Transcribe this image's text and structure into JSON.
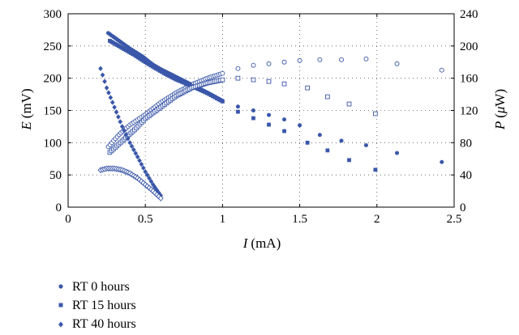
{
  "chart_data": {
    "type": "scatter",
    "title": "",
    "xlabel": {
      "symbol": "I",
      "unit": "(mA)"
    },
    "ylabel_left": {
      "symbol": "E",
      "unit": "(mV)"
    },
    "ylabel_right": {
      "symbol": "P",
      "unit_prefix": "(",
      "unit_mu": "μ",
      "unit_rest": "W)"
    },
    "xlim": [
      0,
      2.5
    ],
    "ylim_left": [
      0,
      300
    ],
    "ylim_right": [
      0,
      240
    ],
    "x_ticks": [
      "0",
      "0.5",
      "1",
      "1.5",
      "2",
      "2.5"
    ],
    "y_left_ticks": [
      "0",
      "50",
      "100",
      "150",
      "200",
      "250",
      "300"
    ],
    "y_right_ticks": [
      "0",
      "40",
      "80",
      "120",
      "160",
      "200",
      "240"
    ],
    "grid": "dotted",
    "legend_position": "below-left",
    "color": "#3a57a9",
    "series": [
      {
        "name": "RT 0 hours",
        "marker": "circle",
        "voltage_mV": [
          [
            0.26,
            270
          ],
          [
            0.33,
            258
          ],
          [
            0.4,
            246
          ],
          [
            0.48,
            234
          ],
          [
            0.55,
            221
          ],
          [
            0.6,
            214
          ],
          [
            0.7,
            202
          ],
          [
            0.8,
            190
          ],
          [
            0.9,
            178
          ],
          [
            1.0,
            165
          ],
          [
            1.1,
            156
          ],
          [
            1.2,
            150
          ],
          [
            1.3,
            143
          ],
          [
            1.4,
            136
          ],
          [
            1.5,
            127
          ],
          [
            1.63,
            112
          ],
          [
            1.77,
            103
          ],
          [
            1.93,
            96
          ],
          [
            2.13,
            84
          ],
          [
            2.42,
            70
          ]
        ],
        "power_uW": [
          [
            0.26,
            75
          ],
          [
            0.33,
            90
          ],
          [
            0.4,
            102
          ],
          [
            0.5,
            115
          ],
          [
            0.6,
            130
          ],
          [
            0.7,
            142
          ],
          [
            0.8,
            152
          ],
          [
            0.9,
            160
          ],
          [
            1.0,
            166
          ],
          [
            1.1,
            172
          ],
          [
            1.2,
            176
          ],
          [
            1.3,
            178
          ],
          [
            1.4,
            180
          ],
          [
            1.5,
            182
          ],
          [
            1.63,
            183
          ],
          [
            1.77,
            183
          ],
          [
            1.93,
            184
          ],
          [
            2.13,
            178
          ],
          [
            2.42,
            170
          ]
        ]
      },
      {
        "name": "RT 15 hours",
        "marker": "square",
        "voltage_mV": [
          [
            0.27,
            258
          ],
          [
            0.35,
            247
          ],
          [
            0.43,
            236
          ],
          [
            0.5,
            225
          ],
          [
            0.57,
            215
          ],
          [
            0.62,
            208
          ],
          [
            0.7,
            198
          ],
          [
            0.8,
            188
          ],
          [
            0.9,
            177
          ],
          [
            1.0,
            164
          ],
          [
            1.1,
            148
          ],
          [
            1.2,
            138
          ],
          [
            1.3,
            128
          ],
          [
            1.4,
            118
          ],
          [
            1.55,
            100
          ],
          [
            1.68,
            88
          ],
          [
            1.82,
            73
          ],
          [
            1.99,
            58
          ]
        ],
        "power_uW": [
          [
            0.27,
            68
          ],
          [
            0.35,
            82
          ],
          [
            0.43,
            96
          ],
          [
            0.5,
            110
          ],
          [
            0.6,
            124
          ],
          [
            0.7,
            138
          ],
          [
            0.8,
            148
          ],
          [
            0.9,
            154
          ],
          [
            1.0,
            158
          ],
          [
            1.1,
            160
          ],
          [
            1.2,
            158
          ],
          [
            1.3,
            156
          ],
          [
            1.4,
            153
          ],
          [
            1.55,
            148
          ],
          [
            1.68,
            137
          ],
          [
            1.82,
            128
          ],
          [
            1.99,
            116
          ]
        ]
      },
      {
        "name": "RT 40 hours",
        "marker": "diamond",
        "voltage_mV": [
          [
            0.21,
            215
          ],
          [
            0.25,
            185
          ],
          [
            0.3,
            155
          ],
          [
            0.35,
            125
          ],
          [
            0.4,
            100
          ],
          [
            0.45,
            78
          ],
          [
            0.5,
            55
          ],
          [
            0.55,
            35
          ],
          [
            0.6,
            18
          ]
        ],
        "power_uW": [
          [
            0.21,
            46
          ],
          [
            0.25,
            48
          ],
          [
            0.3,
            48
          ],
          [
            0.35,
            46
          ],
          [
            0.4,
            42
          ],
          [
            0.45,
            36
          ],
          [
            0.5,
            28
          ],
          [
            0.55,
            20
          ],
          [
            0.6,
            11
          ]
        ]
      }
    ]
  }
}
